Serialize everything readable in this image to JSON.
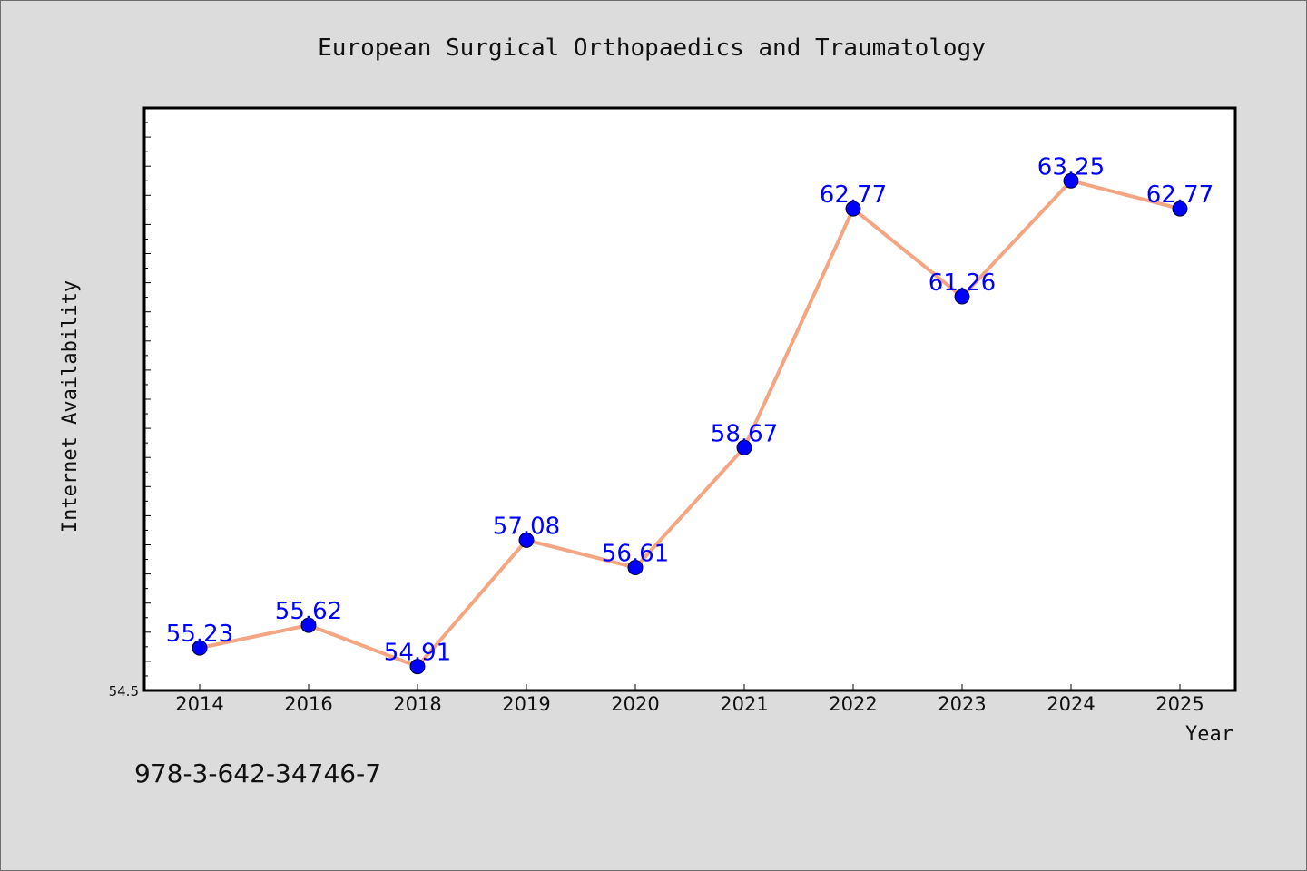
{
  "chart_data": {
    "type": "line",
    "title": "European Surgical Orthopaedics and Traumatology",
    "xlabel": "Year",
    "ylabel": "Internet Availability",
    "categories": [
      "2014",
      "2016",
      "2018",
      "2019",
      "2020",
      "2021",
      "2022",
      "2023",
      "2024",
      "2025"
    ],
    "series": [
      {
        "values": [
          55.23,
          55.62,
          54.91,
          57.08,
          56.61,
          58.67,
          62.77,
          61.26,
          63.25,
          62.77
        ]
      }
    ],
    "data_labels": [
      "55.23",
      "55.62",
      "54.91",
      "57.08",
      "56.61",
      "58.67",
      "62.77",
      "61.26",
      "63.25",
      "62.77"
    ],
    "ylim": [
      54.5,
      64.5
    ],
    "ytick_labels": [
      "54.5"
    ],
    "grid": false,
    "line_color": "#f4a582",
    "marker_color": "#0000ff",
    "label_color": "#0000ff"
  },
  "footer": {
    "isbn": "978-3-642-34746-7"
  }
}
